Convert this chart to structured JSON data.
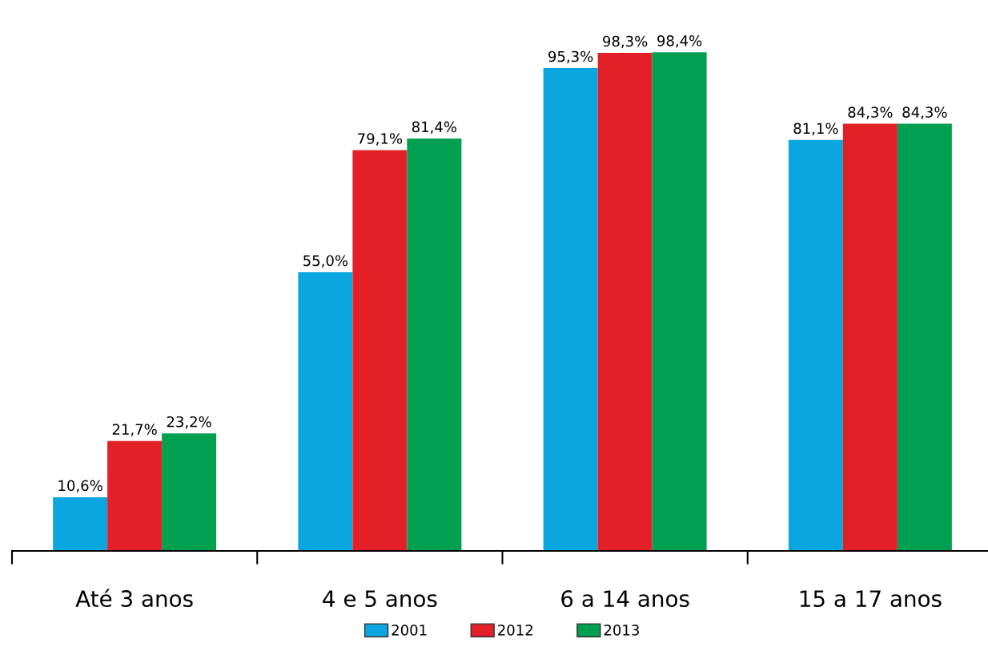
{
  "chart_data": {
    "type": "bar",
    "categories": [
      "Até 3 anos",
      "4 e 5 anos",
      "6 a 14 anos",
      "15 a 17 anos"
    ],
    "series": [
      {
        "name": "2001",
        "color": "#0aa6e0",
        "values": [
          10.6,
          55.0,
          95.3,
          81.1
        ],
        "value_labels": [
          "10,6%",
          "55,0%",
          "95,3%",
          "81,1%"
        ]
      },
      {
        "name": "2012",
        "color": "#e32027",
        "values": [
          21.7,
          79.1,
          98.3,
          84.3
        ],
        "value_labels": [
          "21,7%",
          "79,1%",
          "98,3%",
          "84,3%"
        ]
      },
      {
        "name": "2013",
        "color": "#00a050",
        "values": [
          23.2,
          81.4,
          98.4,
          84.3
        ],
        "value_labels": [
          "23,2%",
          "81,4%",
          "98,4%",
          "84,3%"
        ]
      }
    ],
    "tick_labels": "x",
    "legend": "bottom"
  }
}
